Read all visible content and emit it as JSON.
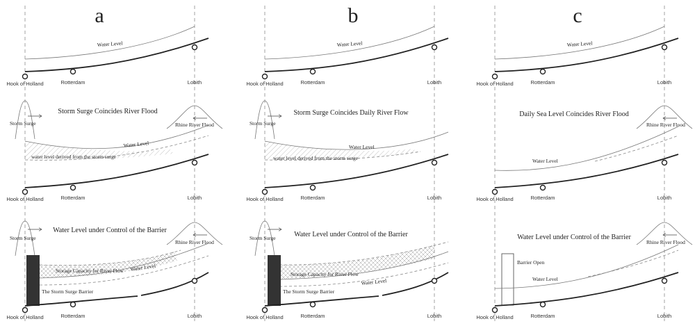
{
  "columns": [
    {
      "letter": "a",
      "top": {
        "water_level": "Water Level"
      },
      "middle": {
        "title": "Storm Surge Coincides River Flood",
        "storm_surge": "Storm Surge",
        "rhine_flood": "Rhine River Flood",
        "water_level": "Water Level",
        "derived": "water level derived from the storm surge"
      },
      "bottom": {
        "title": "Water Level under Control of the Barrier",
        "storm_surge": "Storm Surge",
        "rhine_flood": "Rhine River Flood",
        "storage": "Storage Capacity for River Flow",
        "water_level": "Water Level",
        "barrier": "The Storm Surge Barrier"
      }
    },
    {
      "letter": "b",
      "top": {
        "water_level": "Water Level"
      },
      "middle": {
        "title": "Storm Surge Coincides Daily River Flow",
        "storm_surge": "Storm Surge",
        "water_level": "Water Level",
        "derived": "water level derived from the storm surge"
      },
      "bottom": {
        "title": "Water Level under Control of the Barrier",
        "storm_surge": "Storm Surge",
        "storage": "Storage Capacity for River Flow",
        "water_level": "Water Level",
        "barrier": "The Storm Surge Barrier"
      }
    },
    {
      "letter": "c",
      "top": {
        "water_level": "Water Level"
      },
      "middle": {
        "title": "Daily Sea Level Coincides River Flood",
        "rhine_flood": "Rhine River Flood",
        "water_level": "Water Level"
      },
      "bottom": {
        "title": "Water Level under Control of the Barrier",
        "rhine_flood": "Rhine River Flood",
        "barrier_open": "Barrier Open",
        "water_level": "Water Level"
      }
    }
  ],
  "places": {
    "hook": "Hook of Holland",
    "rotterdam": "Rotterdam",
    "lobith": "Lobith"
  }
}
